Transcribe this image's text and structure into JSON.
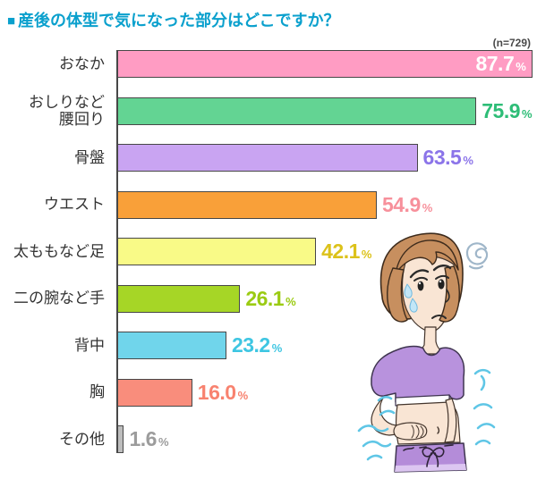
{
  "header": {
    "bullet": "■",
    "title": "産後の体型で気になった部分はどこですか？",
    "sample_size": "(n=729)",
    "title_color": "#0aa0cd"
  },
  "chart_data": {
    "type": "bar",
    "orientation": "horizontal",
    "title": "産後の体型で気になった部分はどこですか？",
    "sample_n": 729,
    "unit": "%",
    "value_axis": {
      "min": 0,
      "max": 100,
      "gridlines": false,
      "axis_line_color": "#474747"
    },
    "categories": [
      "おなか",
      "おしりなど腰回り",
      "骨盤",
      "ウエスト",
      "太ももなど足",
      "二の腕など手",
      "背中",
      "胸",
      "その他"
    ],
    "values": [
      87.7,
      75.9,
      63.5,
      54.9,
      42.1,
      26.1,
      23.2,
      16.0,
      1.6
    ],
    "bars": [
      {
        "label": "おなか",
        "label_lines": [
          "おなか"
        ],
        "value": 87.7,
        "display": "87.7",
        "bar_color": "#ff9cc3",
        "value_color": "#ffffff",
        "value_position": "inside"
      },
      {
        "label": "おしりなど腰回り",
        "label_lines": [
          "おしりなど",
          "腰回り"
        ],
        "value": 75.9,
        "display": "75.9",
        "bar_color": "#63d493",
        "value_color": "#2ebd77",
        "value_position": "outside"
      },
      {
        "label": "骨盤",
        "label_lines": [
          "骨盤"
        ],
        "value": 63.5,
        "display": "63.5",
        "bar_color": "#c9a4f2",
        "value_color": "#8b74e9",
        "value_position": "outside"
      },
      {
        "label": "ウエスト",
        "label_lines": [
          "ウエスト"
        ],
        "value": 54.9,
        "display": "54.9",
        "bar_color": "#f9a039",
        "value_color": "#f7909b",
        "value_position": "outside"
      },
      {
        "label": "太ももなど足",
        "label_lines": [
          "太ももなど足"
        ],
        "value": 42.1,
        "display": "42.1",
        "bar_color": "#f9fa87",
        "value_color": "#dcc21a",
        "value_position": "outside"
      },
      {
        "label": "二の腕など手",
        "label_lines": [
          "二の腕など手"
        ],
        "value": 26.1,
        "display": "26.1",
        "bar_color": "#a6d626",
        "value_color": "#9bcb13",
        "value_position": "outside"
      },
      {
        "label": "背中",
        "label_lines": [
          "背中"
        ],
        "value": 23.2,
        "display": "23.2",
        "bar_color": "#70d5eb",
        "value_color": "#3ec6e2",
        "value_position": "outside"
      },
      {
        "label": "胸",
        "label_lines": [
          "胸"
        ],
        "value": 16.0,
        "display": "16.0",
        "bar_color": "#f98d7c",
        "value_color": "#f8826f",
        "value_position": "outside"
      },
      {
        "label": "その他",
        "label_lines": [
          "その他"
        ],
        "value": 1.6,
        "display": "1.6",
        "bar_color": "#bdbdbd",
        "value_color": "#9c9c9c",
        "value_position": "outside"
      }
    ]
  },
  "illustration": {
    "subject": "worried-woman-touching-belly",
    "colors": {
      "hair": "#c78f5f",
      "skin": "#f9e5d4",
      "top": "#b892dd",
      "pants": "#b48cd9",
      "pants_hem": "#dcc6f1",
      "waves": "#5fc6e6",
      "swirl": "#9fb6c9",
      "sweat": "#c2e6f7"
    }
  }
}
